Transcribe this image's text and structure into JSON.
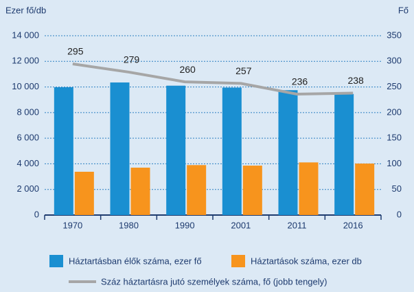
{
  "chart_data": {
    "type": "bar",
    "y_label": "Ezer fő/db",
    "y2_label": "Fő",
    "categories": [
      "1970",
      "1980",
      "1990",
      "2001",
      "2011",
      "2016"
    ],
    "series": [
      {
        "name": "Háztartásban élők száma, ezer fő",
        "color": "#1a8fd1",
        "type": "bar",
        "axis": "y",
        "values": [
          9980,
          10350,
          10100,
          9950,
          9750,
          9450
        ]
      },
      {
        "name": "Háztartások száma, ezer db",
        "color": "#f7941d",
        "type": "bar",
        "axis": "y",
        "values": [
          3380,
          3700,
          3900,
          3860,
          4110,
          4020
        ]
      },
      {
        "name": "Száz háztartásra jutó személyek száma, fő (jobb tengely)",
        "color": "#a6a6a6",
        "type": "line",
        "axis": "y2",
        "values": [
          295,
          279,
          260,
          257,
          236,
          238
        ]
      }
    ],
    "ylim": [
      0,
      14000
    ],
    "yticks": [
      0,
      {
        "value": 2000,
        "label": "2 000"
      },
      {
        "value": 4000,
        "label": "4 000"
      },
      {
        "value": 6000,
        "label": "6 000"
      },
      {
        "value": 8000,
        "label": "8 000"
      },
      {
        "value": 10000,
        "label": "10 000"
      },
      {
        "value": 12000,
        "label": "12 000"
      },
      {
        "value": 14000,
        "label": "14 000"
      }
    ],
    "y2lim": [
      0,
      350
    ],
    "y2ticks": [
      0,
      50,
      100,
      150,
      200,
      250,
      300,
      350
    ],
    "grid": true
  }
}
